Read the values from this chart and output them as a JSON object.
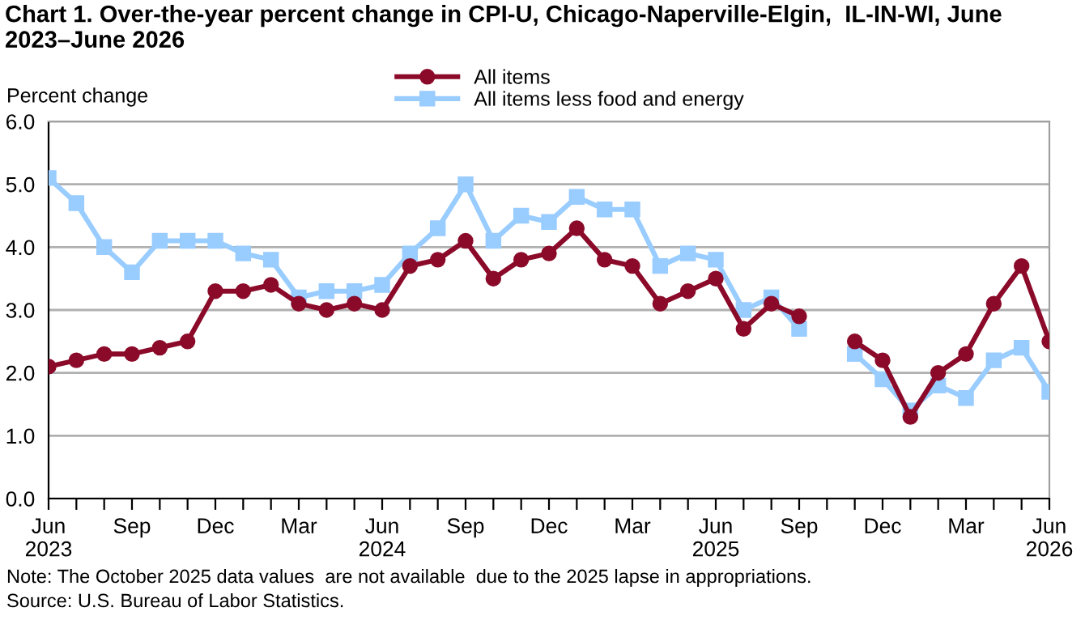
{
  "chart_data": {
    "type": "line",
    "title": "Chart 1. Over-the-year percent change in CPI-U, Chicago-Naperville-Elgin,  IL-IN-WI, June 2023–June 2026",
    "ylabel": "Percent change",
    "categories": [
      "Jun\n2023",
      null,
      null,
      "Sep",
      null,
      null,
      "Dec",
      null,
      null,
      "Mar",
      null,
      null,
      "Jun\n2024",
      null,
      null,
      "Sep",
      null,
      null,
      "Dec",
      null,
      null,
      "Mar",
      null,
      null,
      "Jun\n2025",
      null,
      null,
      "Sep",
      null,
      null,
      "Dec",
      null,
      null,
      "Mar",
      null,
      null,
      "Jun\n2026"
    ],
    "series": [
      {
        "name": "All items",
        "color": "#8b0a2a",
        "marker": "circle",
        "values": [
          2.1,
          2.2,
          2.3,
          2.3,
          2.4,
          2.5,
          3.3,
          3.3,
          3.4,
          3.1,
          3.0,
          3.1,
          3.0,
          3.7,
          3.8,
          4.1,
          3.5,
          3.8,
          3.9,
          4.3,
          3.8,
          3.7,
          3.1,
          3.3,
          3.5,
          2.7,
          3.1,
          2.9,
          null,
          2.5,
          2.2,
          1.3,
          2.0,
          2.3,
          3.1,
          3.7,
          2.5
        ]
      },
      {
        "name": "All items less food and energy",
        "color": "#99ccff",
        "marker": "square",
        "values": [
          5.1,
          4.7,
          4.0,
          3.6,
          4.1,
          4.1,
          4.1,
          3.9,
          3.8,
          3.2,
          3.3,
          3.3,
          3.4,
          3.9,
          4.3,
          5.0,
          4.1,
          4.5,
          4.4,
          4.8,
          4.6,
          4.6,
          3.7,
          3.9,
          3.8,
          3.0,
          3.2,
          2.7,
          null,
          2.3,
          1.9,
          1.4,
          1.8,
          1.6,
          2.2,
          2.4,
          1.7
        ]
      }
    ],
    "ylim": [
      0,
      6
    ],
    "yticks": [
      {
        "value": 0,
        "label": "0.0"
      },
      {
        "value": 1,
        "label": "1.0"
      },
      {
        "value": 2,
        "label": "2.0"
      },
      {
        "value": 3,
        "label": "3.0"
      },
      {
        "value": 4,
        "label": "4.0"
      },
      {
        "value": 5,
        "label": "5.0"
      },
      {
        "value": 6,
        "label": "6.0"
      }
    ],
    "grid": "y",
    "legend": "top",
    "line_style": "solid",
    "annotations": [
      "Note: The October 2025 data values  are not available  due to the 2025 lapse in appropriations.",
      "Source: U.S. Bureau of Labor Statistics."
    ]
  }
}
